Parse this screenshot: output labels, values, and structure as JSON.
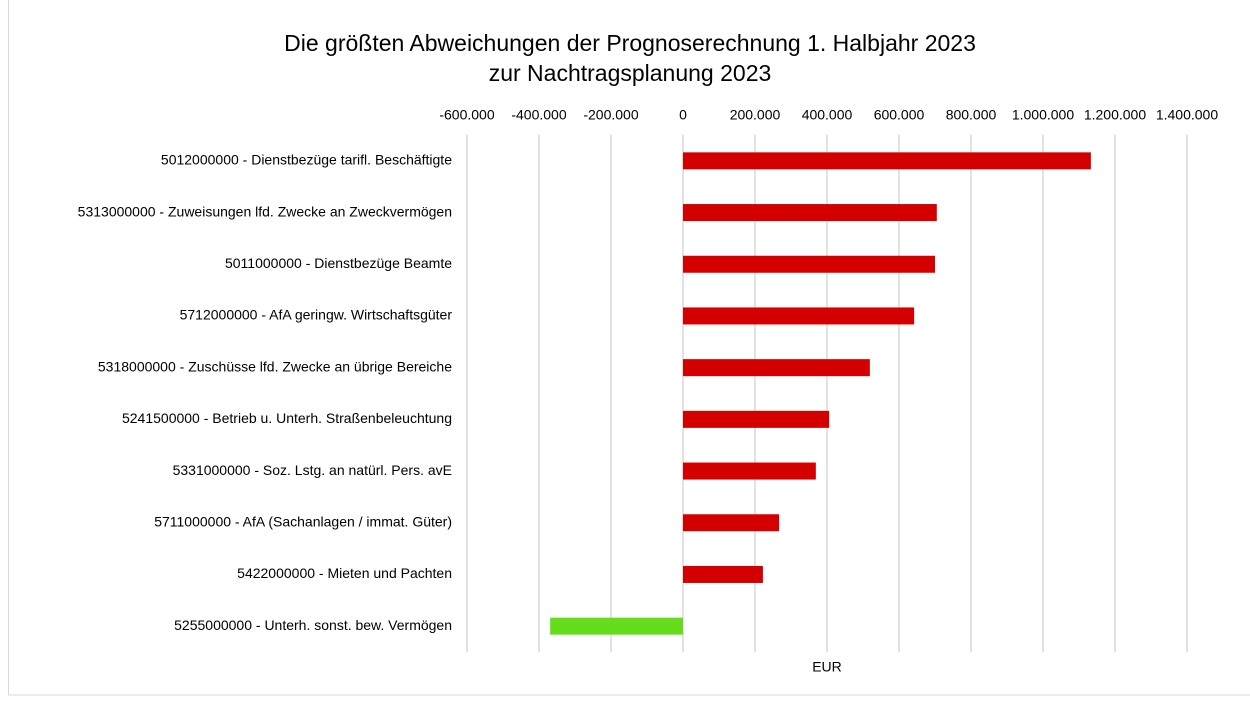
{
  "chart_data": {
    "type": "bar",
    "orientation": "horizontal",
    "title": [
      "Die größten Abweichungen der Prognoserechnung 1. Halbjahr 2023",
      "zur Nachtragsplanung 2023"
    ],
    "x_label": "EUR",
    "categories": [
      "5012000000 - Dienstbezüge tarifl. Beschäftigte",
      "5313000000 - Zuweisungen lfd. Zwecke an Zweckvermögen",
      "5011000000 - Dienstbezüge Beamte",
      "5712000000 - AfA geringw. Wirtschaftsgüter",
      "5318000000 - Zuschüsse lfd. Zwecke an übrige Bereiche",
      "5241500000 - Betrieb u. Unterh. Straßenbeleuchtung",
      "5331000000 - Soz. Lstg. an natürl. Pers. avE",
      "5711000000 - AfA (Sachanlagen / immat. Güter)",
      "5422000000 - Mieten und Pachten",
      "5255000000 - Unterh. sonst. bew. Vermögen"
    ],
    "values": [
      1133000,
      705000,
      700000,
      642000,
      519000,
      406000,
      369000,
      267000,
      222000,
      -369000
    ],
    "colors": [
      "#d40000",
      "#d40000",
      "#d40000",
      "#d40000",
      "#d40000",
      "#d40000",
      "#d40000",
      "#d40000",
      "#d40000",
      "#66dd1a"
    ],
    "xlim": [
      -600000,
      1400000
    ],
    "xticks": [
      {
        "value": -600000,
        "label": "-600.000"
      },
      {
        "value": -400000,
        "label": "-400.000"
      },
      {
        "value": -200000,
        "label": "-200.000"
      },
      0,
      {
        "value": 200000,
        "label": "200.000"
      },
      {
        "value": 400000,
        "label": "400.000"
      },
      {
        "value": 600000,
        "label": "600.000"
      },
      {
        "value": 800000,
        "label": "800.000"
      },
      {
        "value": 1000000,
        "label": "1.000.000"
      },
      {
        "value": 1200000,
        "label": "1.200.000"
      },
      {
        "value": 1400000,
        "label": "1.400.000"
      }
    ],
    "grid": true
  }
}
